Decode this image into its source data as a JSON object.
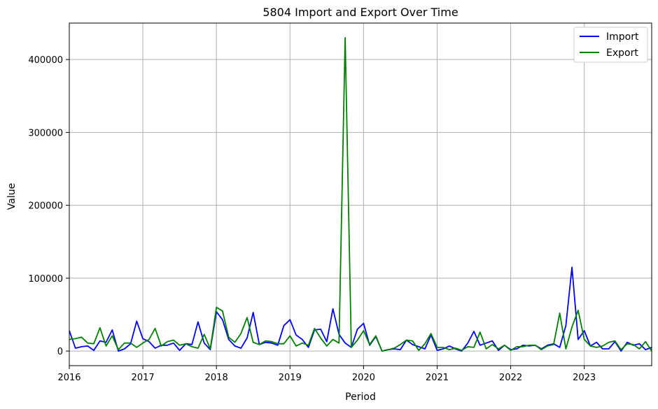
{
  "chart_data": {
    "type": "line",
    "title": "5804 Import and Export Over Time",
    "xlabel": "Period",
    "ylabel": "Value",
    "x_start": "2016-01",
    "x_step": "month",
    "xlim": [
      "2016-01",
      "2023-12"
    ],
    "ylim": [
      -20000,
      450000
    ],
    "x_ticks": [
      "2016",
      "2017",
      "2018",
      "2019",
      "2020",
      "2021",
      "2022",
      "2023"
    ],
    "y_ticks": [
      0,
      100000,
      200000,
      300000,
      400000
    ],
    "grid": true,
    "legend_position": "top-right",
    "series": [
      {
        "name": "Import",
        "color": "#0000ff",
        "values": [
          28000,
          4000,
          6000,
          7000,
          1000,
          14000,
          12000,
          29000,
          0,
          3000,
          10000,
          41000,
          17000,
          13000,
          4000,
          8000,
          8000,
          11000,
          1000,
          10000,
          9000,
          40000,
          11000,
          2000,
          54000,
          43000,
          16000,
          7000,
          4000,
          18000,
          53000,
          9000,
          12000,
          11000,
          8000,
          35000,
          43000,
          22000,
          16000,
          5000,
          29000,
          30000,
          13000,
          58000,
          23000,
          11000,
          5000,
          30000,
          38000,
          8000,
          20000,
          0,
          2000,
          3000,
          2000,
          15000,
          9000,
          6000,
          3000,
          22000,
          1000,
          3000,
          7000,
          3000,
          0,
          11000,
          27000,
          8000,
          11000,
          14000,
          1000,
          8000,
          2000,
          3000,
          8000,
          7000,
          8000,
          3000,
          8000,
          10000,
          5000,
          35000,
          115000,
          16000,
          28000,
          7000,
          12000,
          3000,
          3000,
          13000,
          0,
          12000,
          8000,
          10000,
          2000,
          5000
        ]
      },
      {
        "name": "Export",
        "color": "#008000",
        "values": [
          16000,
          17000,
          19000,
          11000,
          10000,
          32000,
          7000,
          21000,
          2000,
          11000,
          11000,
          5000,
          11000,
          16000,
          31000,
          7000,
          13000,
          15000,
          8000,
          10000,
          6000,
          4000,
          23000,
          3000,
          60000,
          55000,
          19000,
          12000,
          24000,
          46000,
          12000,
          9000,
          14000,
          13000,
          10000,
          10000,
          21000,
          7000,
          11000,
          8000,
          31000,
          18000,
          7000,
          16000,
          11000,
          430000,
          5000,
          15000,
          28000,
          9000,
          21000,
          0,
          2000,
          4000,
          9000,
          15000,
          14000,
          1000,
          10000,
          24000,
          5000,
          5000,
          2000,
          4000,
          1000,
          6000,
          5000,
          26000,
          3000,
          9000,
          3000,
          8000,
          1000,
          6000,
          6000,
          8000,
          8000,
          2000,
          7000,
          9000,
          52000,
          3000,
          33000,
          56000,
          16000,
          7000,
          5000,
          7000,
          12000,
          14000,
          2000,
          10000,
          9000,
          3000,
          13000,
          0
        ]
      }
    ]
  }
}
